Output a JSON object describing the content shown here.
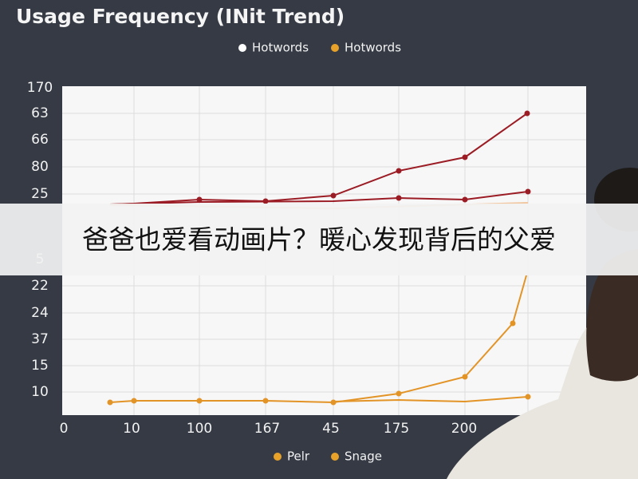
{
  "title": "Usage Frequency (INit Trend)",
  "legend_top": [
    "Hotwords",
    "Hotwords"
  ],
  "y_labels_top": [
    "170",
    "63",
    "66",
    "80",
    "25"
  ],
  "y_labels_bottom": [
    "5",
    "22",
    "24",
    "37",
    "15",
    "10"
  ],
  "x_labels": [
    "0",
    "10",
    "100",
    "167",
    "45",
    "175",
    "200"
  ],
  "legend_bottom": [
    "Pelr",
    "Snage"
  ],
  "caption": "爸爸也爱看动画片？暖心发现背后的父爱"
}
